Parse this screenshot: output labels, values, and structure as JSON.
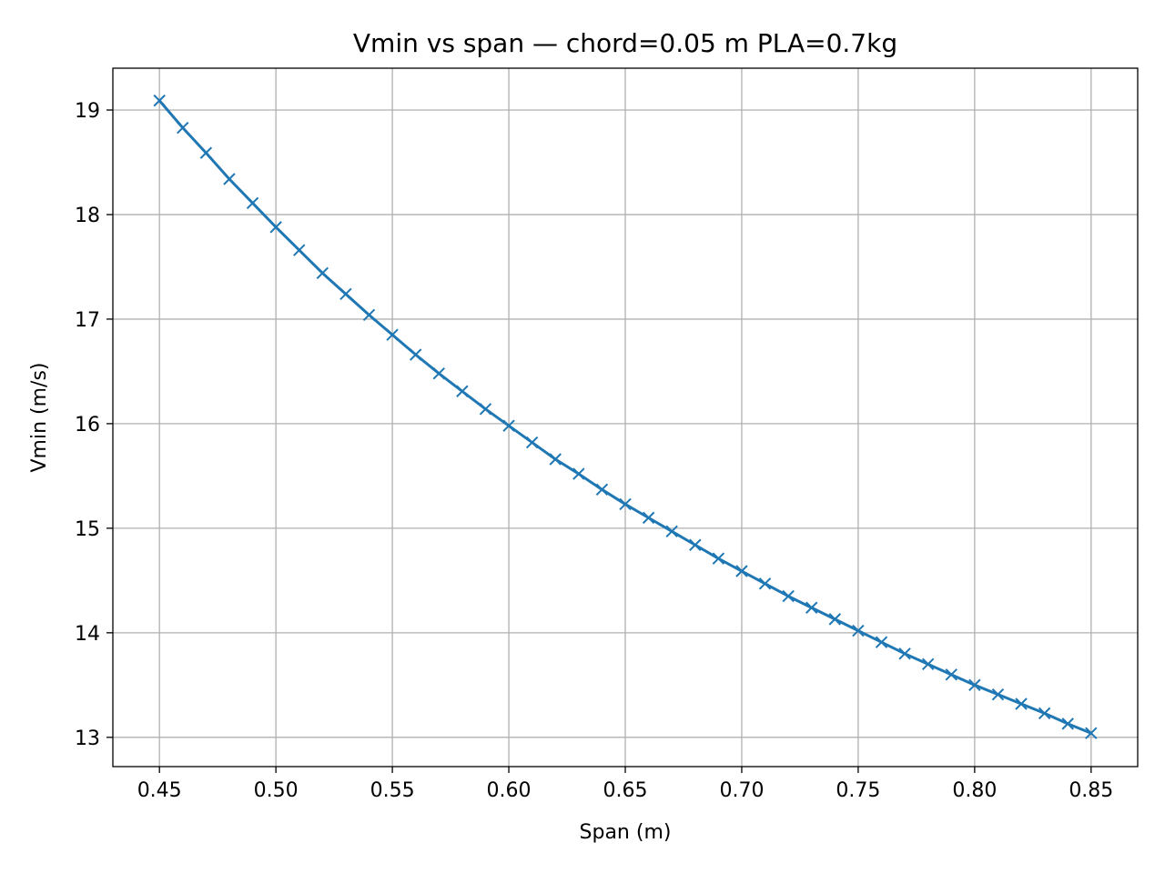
{
  "chart_data": {
    "type": "line",
    "title": "Vmin vs span — chord=0.05 m PLA=0.7kg",
    "xlabel": "Span (m)",
    "ylabel": "Vmin (m/s)",
    "xlim": [
      0.43,
      0.87
    ],
    "ylim": [
      12.72,
      19.4
    ],
    "x_ticks": [
      "0.45",
      "0.50",
      "0.55",
      "0.60",
      "0.65",
      "0.70",
      "0.75",
      "0.80",
      "0.85"
    ],
    "y_ticks": [
      "13",
      "14",
      "15",
      "16",
      "17",
      "18",
      "19"
    ],
    "grid": true,
    "marker": "x",
    "color": "#1f77b4",
    "series": [
      {
        "x": [
          0.45,
          0.46,
          0.47,
          0.48,
          0.49,
          0.5,
          0.51,
          0.52,
          0.53,
          0.54,
          0.55,
          0.56,
          0.57,
          0.58,
          0.59,
          0.6,
          0.61,
          0.62,
          0.63,
          0.64,
          0.65,
          0.66,
          0.67,
          0.68,
          0.69,
          0.7,
          0.71,
          0.72,
          0.73,
          0.74,
          0.75,
          0.76,
          0.77,
          0.78,
          0.79,
          0.8,
          0.81,
          0.82,
          0.83,
          0.84,
          0.85
        ],
        "values": [
          19.09,
          18.83,
          18.59,
          18.34,
          18.11,
          17.88,
          17.66,
          17.44,
          17.24,
          17.04,
          16.85,
          16.66,
          16.48,
          16.31,
          16.14,
          15.98,
          15.82,
          15.66,
          15.52,
          15.37,
          15.23,
          15.1,
          14.97,
          14.84,
          14.71,
          14.59,
          14.47,
          14.35,
          14.24,
          14.13,
          14.02,
          13.91,
          13.8,
          13.7,
          13.6,
          13.5,
          13.41,
          13.32,
          13.23,
          13.13,
          13.04
        ]
      }
    ]
  }
}
